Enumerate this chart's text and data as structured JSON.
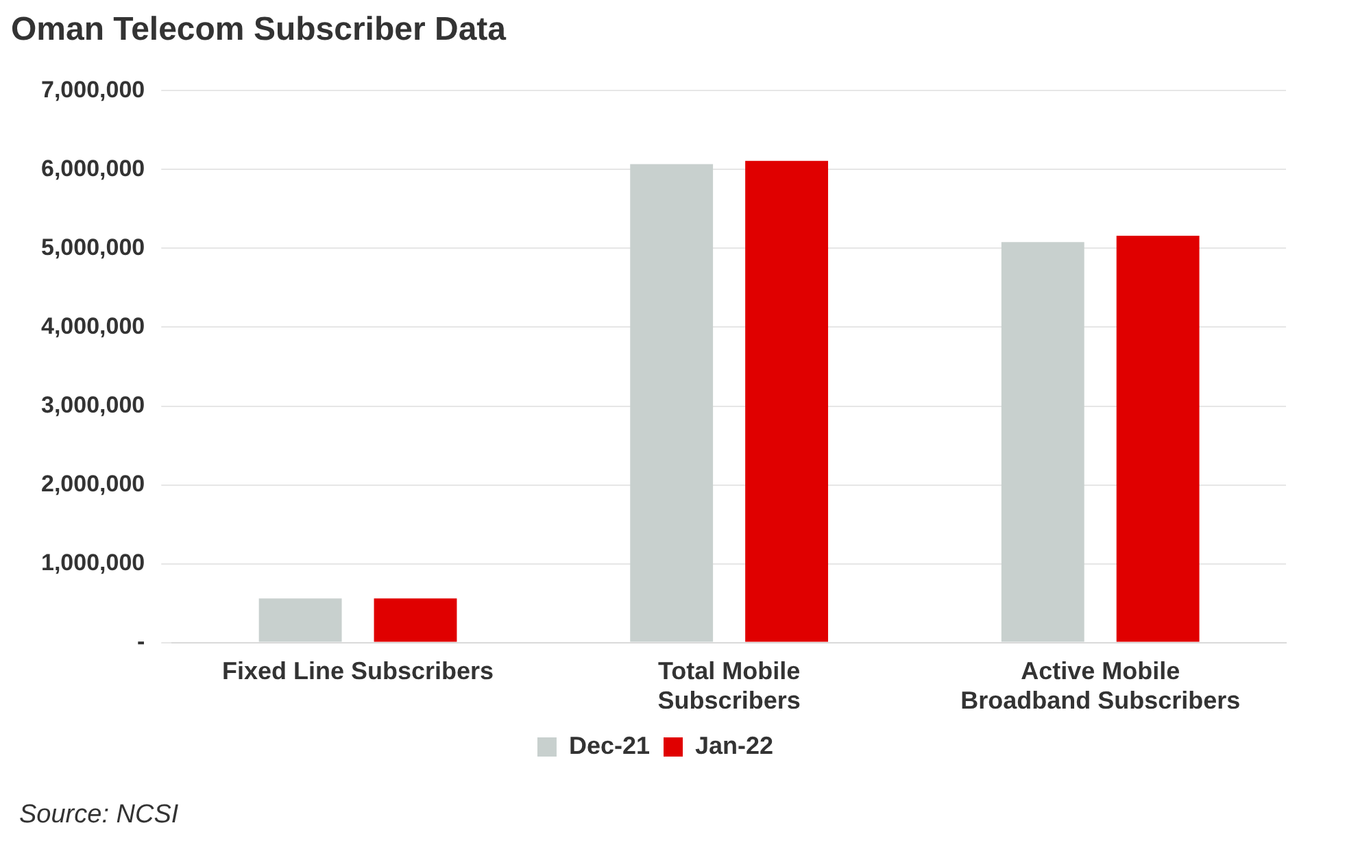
{
  "chart_data": {
    "type": "bar",
    "title": "Oman Telecom Subscriber Data",
    "categories": [
      "Fixed Line Subscribers",
      "Total Mobile Subscribers",
      "Active Mobile Broadband Subscribers"
    ],
    "series": [
      {
        "name": "Dec-21",
        "color": "#c8d0ce",
        "values": [
          560000,
          6070000,
          5080000
        ]
      },
      {
        "name": "Jan-22",
        "color": "#e00000",
        "values": [
          560000,
          6110000,
          5160000
        ]
      }
    ],
    "ylim": [
      0,
      7000000
    ],
    "yticks": [
      {
        "value": 0,
        "label": "-"
      },
      {
        "value": 1000000,
        "label": "1,000,000"
      },
      {
        "value": 2000000,
        "label": "2,000,000"
      },
      {
        "value": 3000000,
        "label": "3,000,000"
      },
      {
        "value": 4000000,
        "label": "4,000,000"
      },
      {
        "value": 5000000,
        "label": "5,000,000"
      },
      {
        "value": 6000000,
        "label": "6,000,000"
      },
      {
        "value": 7000000,
        "label": "7,000,000"
      }
    ],
    "grid": "y",
    "legend": "bottom",
    "annotations": [
      "Source: NCSI"
    ]
  }
}
